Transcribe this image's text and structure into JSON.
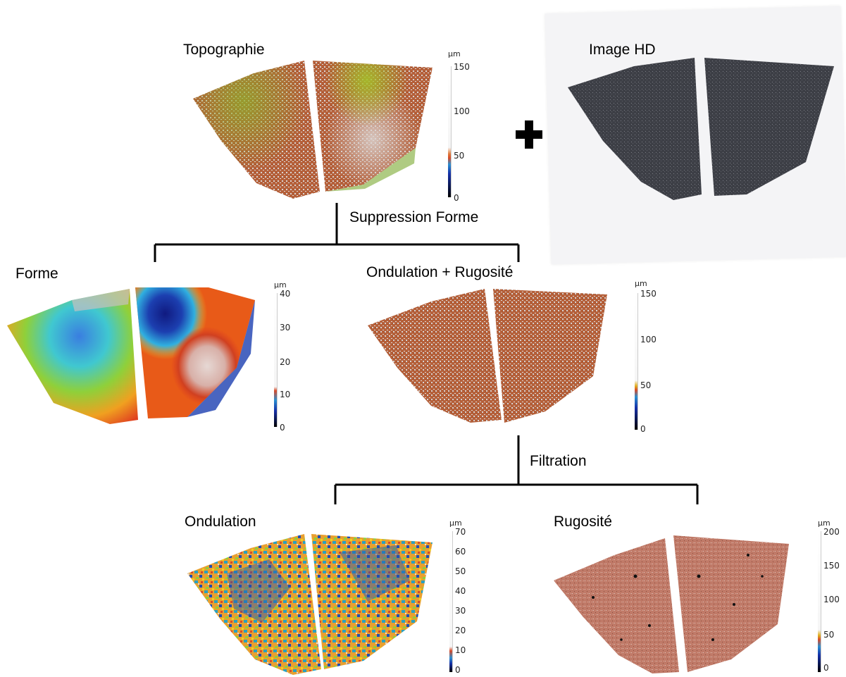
{
  "labels": {
    "topographie": "Topographie",
    "image_hd": "Image HD",
    "suppression_forme": "Suppression Forme",
    "forme": "Forme",
    "ondulation_rugosite": "Ondulation + Rugosité",
    "filtration": "Filtration",
    "ondulation": "Ondulation",
    "rugosite": "Rugosité"
  },
  "operator": "plus-icon",
  "scales": {
    "topographie": {
      "unit": "µm",
      "ticks": [
        "150",
        "100",
        "50",
        "0"
      ]
    },
    "forme": {
      "unit": "µm",
      "ticks": [
        "40",
        "30",
        "20",
        "10",
        "0"
      ]
    },
    "ondulation_rugosite": {
      "unit": "µm",
      "ticks": [
        "150",
        "100",
        "50",
        "0"
      ]
    },
    "ondulation": {
      "unit": "µm",
      "ticks": [
        "70",
        "60",
        "50",
        "40",
        "30",
        "20",
        "10",
        "0"
      ]
    },
    "rugosite": {
      "unit": "µm",
      "ticks": [
        "200",
        "150",
        "100",
        "50",
        "0"
      ]
    }
  },
  "colors": {
    "topo_base": "#b5603a",
    "topo_light": "#d8d2d0",
    "topo_green": "#8fae2a",
    "hd_dark": "#3d3f46",
    "rugosite_base": "#c07a68",
    "forme_blue": "#1c3fb0",
    "ondulation_blue": "#1f4fb5"
  }
}
